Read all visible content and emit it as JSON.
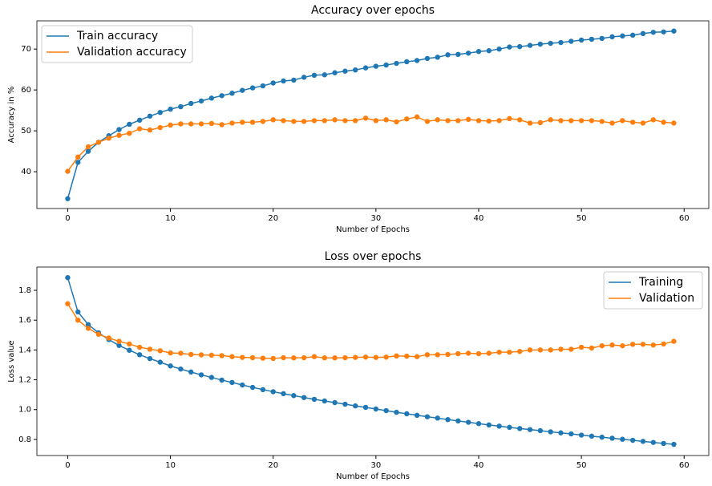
{
  "chart_data": [
    {
      "type": "line",
      "title": "Accuracy over epochs",
      "x_label": "Number of Epochs",
      "y_label": "Accuracy in %",
      "x": [
        0,
        1,
        2,
        3,
        4,
        5,
        6,
        7,
        8,
        9,
        10,
        11,
        12,
        13,
        14,
        15,
        16,
        17,
        18,
        19,
        20,
        21,
        22,
        23,
        24,
        25,
        26,
        27,
        28,
        29,
        30,
        31,
        32,
        33,
        34,
        35,
        36,
        37,
        38,
        39,
        40,
        41,
        42,
        43,
        44,
        45,
        46,
        47,
        48,
        49,
        50,
        51,
        52,
        53,
        54,
        55,
        56,
        57,
        58,
        59
      ],
      "series": [
        {
          "name": "Train accuracy",
          "color": "#1f77b4",
          "values": [
            33.4,
            42.3,
            45.0,
            47.2,
            48.8,
            50.3,
            51.6,
            52.6,
            53.6,
            54.5,
            55.3,
            55.9,
            56.7,
            57.3,
            58.0,
            58.6,
            59.2,
            59.9,
            60.5,
            61.0,
            61.7,
            62.2,
            62.4,
            63.1,
            63.6,
            63.7,
            64.2,
            64.6,
            64.9,
            65.4,
            65.8,
            66.1,
            66.5,
            66.9,
            67.2,
            67.7,
            68.0,
            68.6,
            68.7,
            69.0,
            69.4,
            69.6,
            70.0,
            70.5,
            70.6,
            70.9,
            71.2,
            71.4,
            71.6,
            71.9,
            72.2,
            72.4,
            72.6,
            73.0,
            73.2,
            73.4,
            73.8,
            74.1,
            74.2,
            74.4
          ]
        },
        {
          "name": "Validation accuracy",
          "color": "#ff7f0e",
          "values": [
            40.1,
            43.6,
            46.1,
            47.2,
            48.2,
            48.9,
            49.4,
            50.5,
            50.2,
            50.8,
            51.4,
            51.7,
            51.7,
            51.7,
            51.8,
            51.5,
            51.9,
            52.1,
            52.1,
            52.3,
            52.7,
            52.5,
            52.3,
            52.3,
            52.5,
            52.5,
            52.7,
            52.5,
            52.5,
            53.1,
            52.5,
            52.7,
            52.2,
            52.9,
            53.4,
            52.3,
            52.7,
            52.5,
            52.5,
            52.8,
            52.5,
            52.4,
            52.5,
            53.0,
            52.7,
            51.9,
            52.0,
            52.7,
            52.5,
            52.5,
            52.5,
            52.5,
            52.3,
            51.9,
            52.5,
            52.1,
            51.9,
            52.7,
            52.1,
            51.9
          ]
        }
      ],
      "xlim": [
        -3.0,
        62.4
      ],
      "ylim": [
        31.0,
        76.9
      ],
      "xticks": [
        0,
        10,
        20,
        30,
        40,
        50,
        60
      ],
      "yticks": [
        40,
        50,
        60,
        70
      ],
      "legend": "upper left",
      "markers": true
    },
    {
      "type": "line",
      "title": "Loss over epochs",
      "x_label": "Number of Epochs",
      "y_label": "Loss value",
      "x": [
        0,
        1,
        2,
        3,
        4,
        5,
        6,
        7,
        8,
        9,
        10,
        11,
        12,
        13,
        14,
        15,
        16,
        17,
        18,
        19,
        20,
        21,
        22,
        23,
        24,
        25,
        26,
        27,
        28,
        29,
        30,
        31,
        32,
        33,
        34,
        35,
        36,
        37,
        38,
        39,
        40,
        41,
        42,
        43,
        44,
        45,
        46,
        47,
        48,
        49,
        50,
        51,
        52,
        53,
        54,
        55,
        56,
        57,
        58,
        59
      ],
      "series": [
        {
          "name": "Training",
          "color": "#1f77b4",
          "values": [
            1.885,
            1.655,
            1.57,
            1.515,
            1.47,
            1.43,
            1.398,
            1.368,
            1.342,
            1.318,
            1.293,
            1.272,
            1.252,
            1.233,
            1.216,
            1.198,
            1.182,
            1.165,
            1.149,
            1.134,
            1.12,
            1.107,
            1.094,
            1.081,
            1.069,
            1.058,
            1.047,
            1.036,
            1.025,
            1.015,
            1.004,
            0.993,
            0.982,
            0.972,
            0.962,
            0.952,
            0.943,
            0.933,
            0.924,
            0.915,
            0.906,
            0.897,
            0.889,
            0.881,
            0.873,
            0.866,
            0.859,
            0.851,
            0.844,
            0.837,
            0.829,
            0.822,
            0.815,
            0.808,
            0.801,
            0.794,
            0.787,
            0.78,
            0.773,
            0.767
          ]
        },
        {
          "name": "Validation",
          "color": "#ff7f0e",
          "values": [
            1.71,
            1.6,
            1.545,
            1.505,
            1.48,
            1.458,
            1.44,
            1.418,
            1.405,
            1.395,
            1.38,
            1.378,
            1.37,
            1.367,
            1.365,
            1.362,
            1.355,
            1.35,
            1.348,
            1.345,
            1.343,
            1.348,
            1.347,
            1.348,
            1.355,
            1.347,
            1.347,
            1.348,
            1.35,
            1.352,
            1.35,
            1.352,
            1.36,
            1.358,
            1.355,
            1.368,
            1.368,
            1.37,
            1.375,
            1.378,
            1.375,
            1.378,
            1.385,
            1.385,
            1.39,
            1.4,
            1.4,
            1.4,
            1.405,
            1.405,
            1.418,
            1.413,
            1.428,
            1.433,
            1.428,
            1.438,
            1.438,
            1.433,
            1.44,
            1.458
          ]
        }
      ],
      "xlim": [
        -3.0,
        62.4
      ],
      "ylim": [
        0.692,
        1.956
      ],
      "xticks": [
        0,
        10,
        20,
        30,
        40,
        50,
        60
      ],
      "yticks": [
        0.8,
        {
          "value": 1,
          "label": "1.0"
        },
        1.2,
        1.4,
        1.6,
        1.8
      ],
      "legend": "upper right",
      "markers": true
    }
  ]
}
